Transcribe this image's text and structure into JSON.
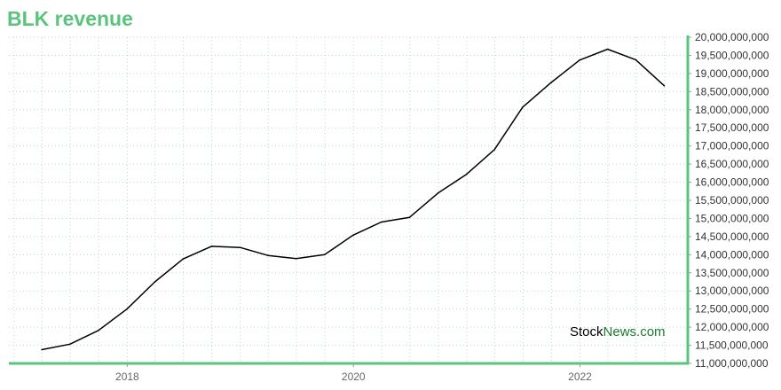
{
  "chart_data": {
    "type": "line",
    "title": "BLK revenue",
    "x": [
      "2017-03-31",
      "2017-06-30",
      "2017-09-30",
      "2017-12-31",
      "2018-03-31",
      "2018-06-30",
      "2018-09-30",
      "2018-12-31",
      "2019-03-31",
      "2019-06-30",
      "2019-09-30",
      "2019-12-31",
      "2020-03-31",
      "2020-06-30",
      "2020-09-30",
      "2020-12-31",
      "2021-03-31",
      "2021-06-30",
      "2021-09-30",
      "2021-12-31",
      "2022-03-31",
      "2022-06-30",
      "2022-09-30"
    ],
    "series": [
      {
        "values": [
          11380000000,
          11530000000,
          11910000000,
          12500000000,
          13250000000,
          13880000000,
          14230000000,
          14200000000,
          13980000000,
          13890000000,
          14000000000,
          14540000000,
          14900000000,
          15030000000,
          15700000000,
          16220000000,
          16900000000,
          18070000000,
          18750000000,
          19370000000,
          19670000000,
          19380000000,
          18660000000
        ],
        "color": "#000000"
      }
    ],
    "x_ticks": [
      "2018",
      "2020",
      "2022"
    ],
    "y_ticks": [
      "11,000,000,000",
      "11,500,000,000",
      "12,000,000,000",
      "12,500,000,000",
      "13,000,000,000",
      "13,500,000,000",
      "14,000,000,000",
      "14,500,000,000",
      "15,000,000,000",
      "15,500,000,000",
      "16,000,000,000",
      "16,500,000,000",
      "17,000,000,000",
      "17,500,000,000",
      "18,000,000,000",
      "18,500,000,000",
      "19,000,000,000",
      "19,500,000,000",
      "20,000,000,000"
    ],
    "ylim": [
      11000000000,
      20000000000
    ],
    "y_axis_side": "right",
    "grid": true,
    "xlabel": "",
    "ylabel": ""
  },
  "watermark": {
    "part1": "Stock",
    "part2": "News.com"
  },
  "colors": {
    "title": "#5ac47d",
    "axis": "#5ac47d",
    "watermark_part1": "#000000",
    "watermark_part2": "#1a7a2e"
  }
}
